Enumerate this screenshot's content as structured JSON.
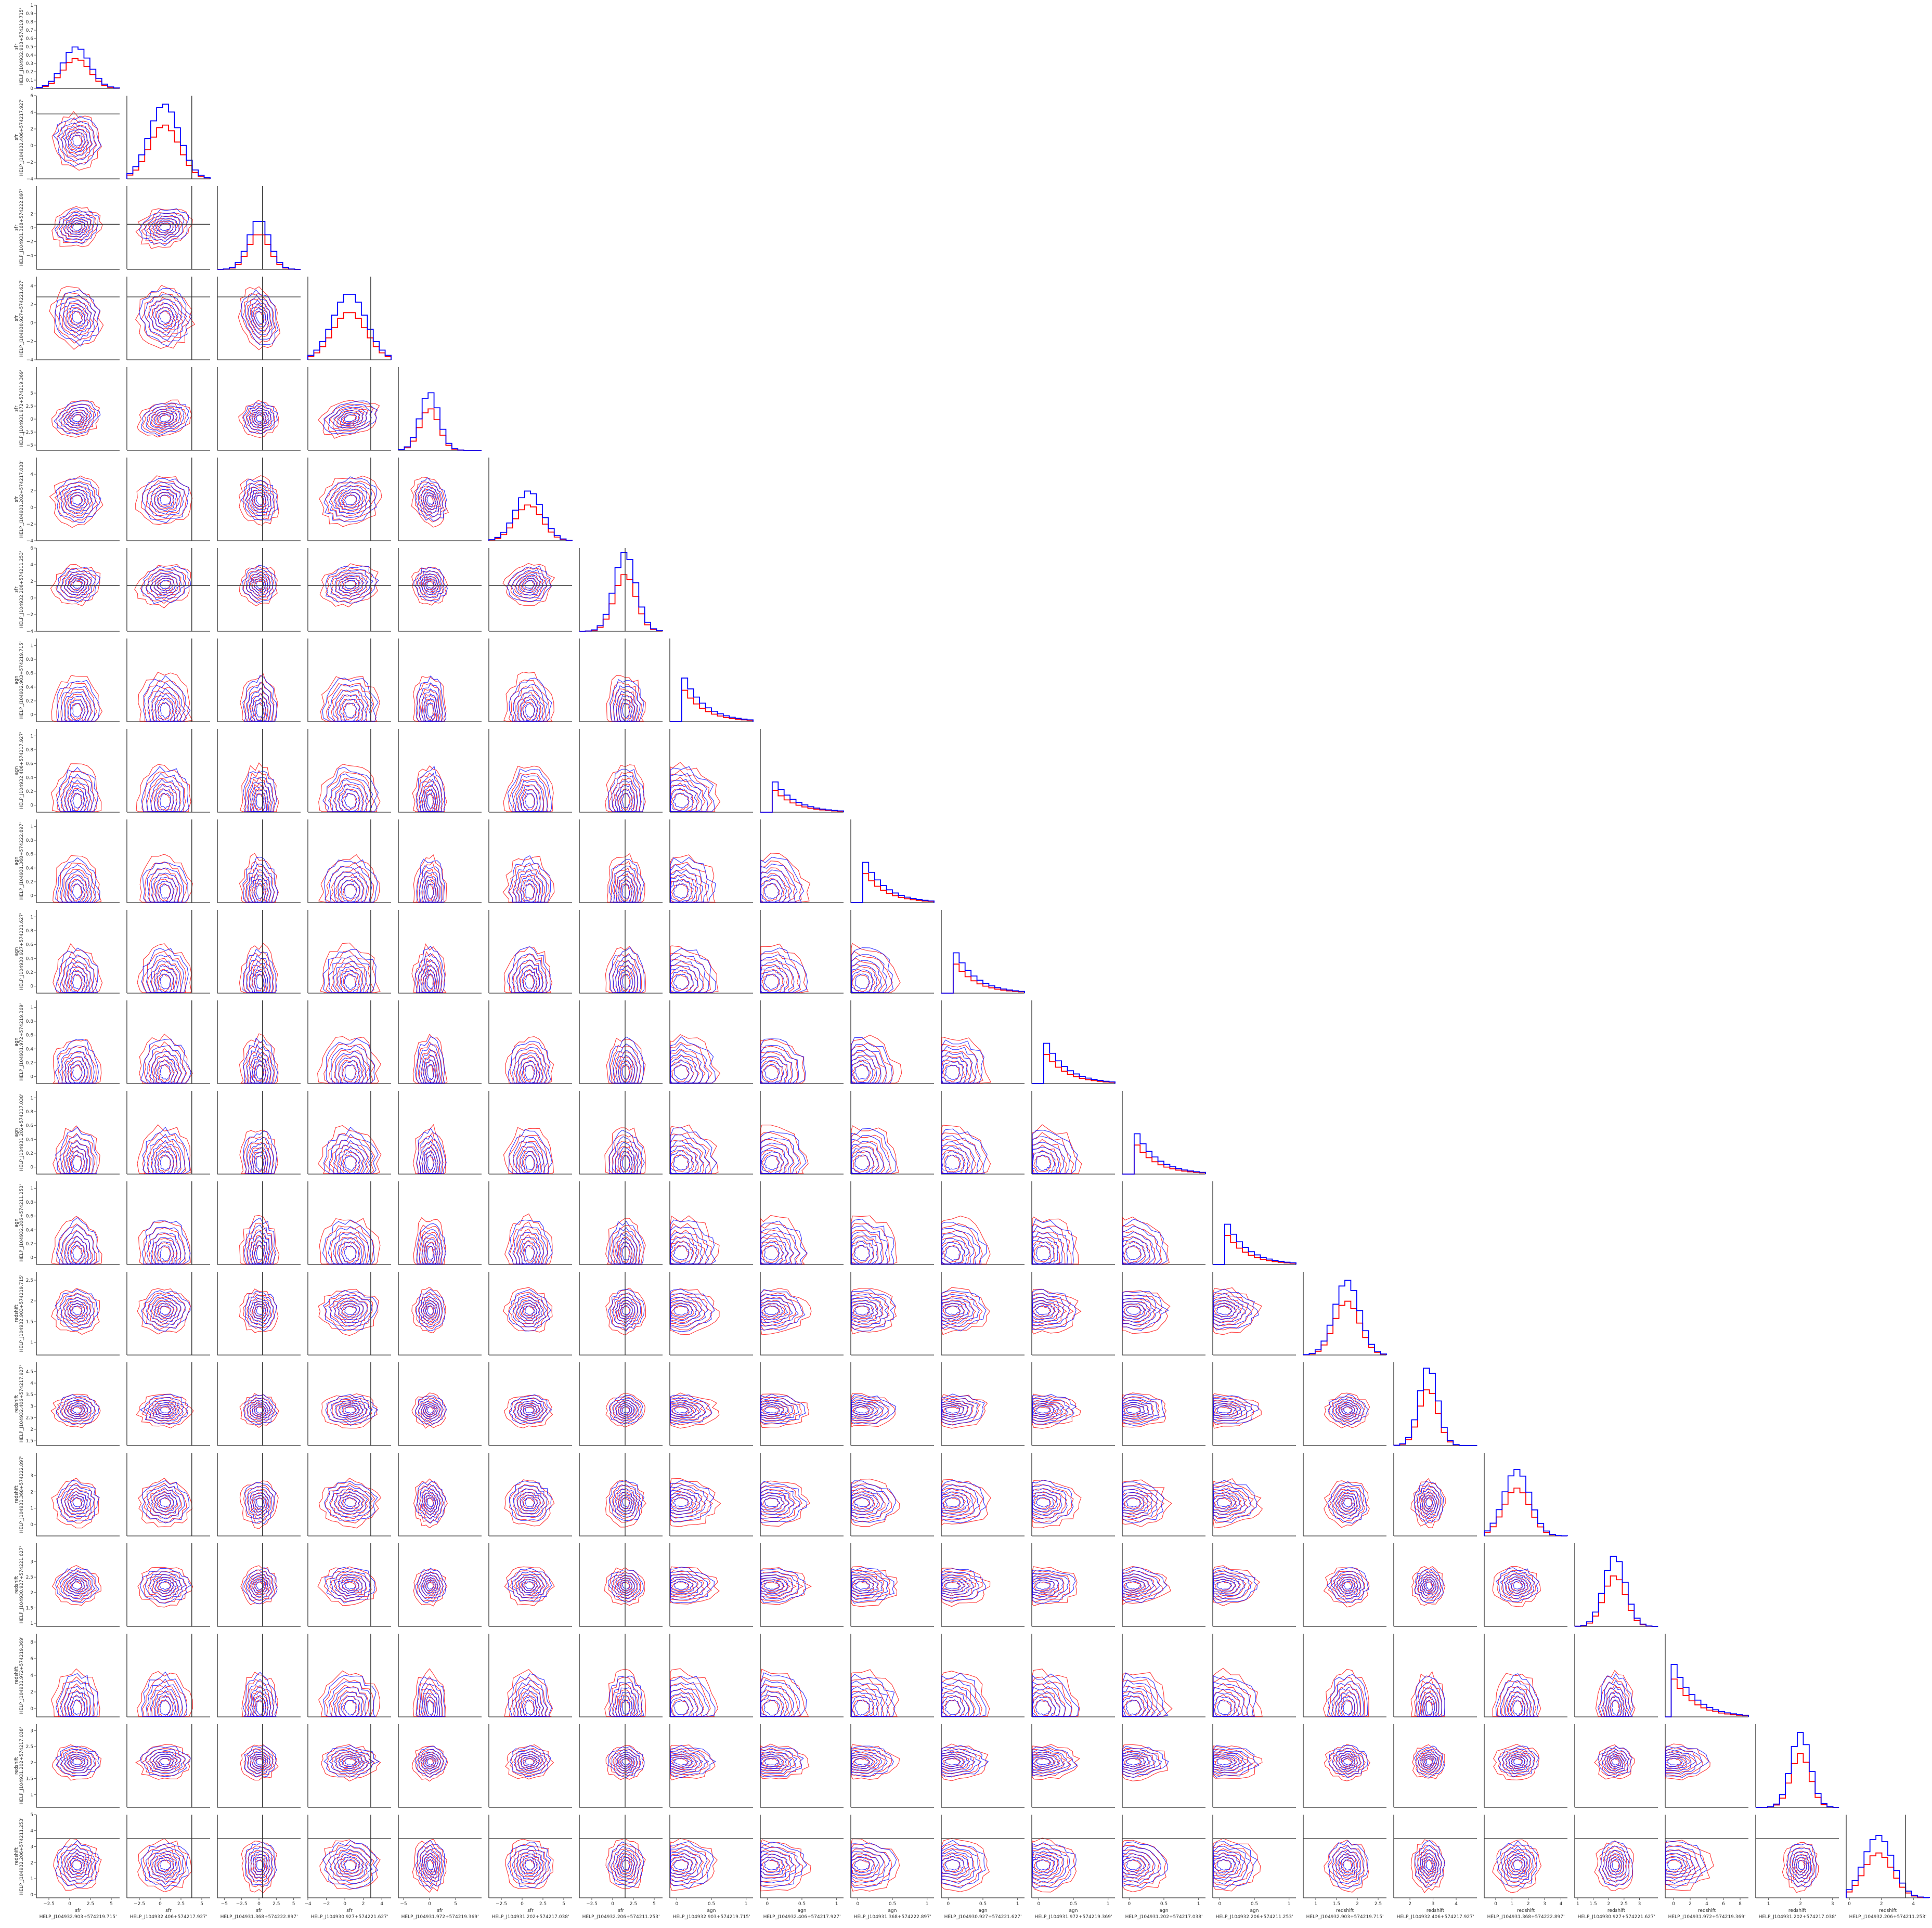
{
  "chart_data": {
    "type": "corner",
    "n_params": 21,
    "series": [
      {
        "name": "",
        "color": "#ff0000"
      },
      {
        "name": "",
        "color": "#0000ff"
      }
    ],
    "params": [
      {
        "quantity": "sfr",
        "source": "HELP_J104932.903+574219.715'",
        "range": [
          -4,
          6
        ],
        "ticks": [
          -2.5,
          0.0,
          2.5,
          5.0
        ],
        "yticks": [
          0.0,
          0.1,
          0.2,
          0.3,
          0.4,
          0.5,
          0.6,
          0.7,
          0.8,
          0.9,
          1.0
        ],
        "peak": 0.5,
        "center": 0.8,
        "width": 1.6,
        "hist": "gauss",
        "fit": 0
      },
      {
        "quantity": "sfr",
        "source": "HELP_J104932.406+574217.927'",
        "range": [
          -4,
          6
        ],
        "ticks": [
          -2.5,
          0.0,
          2.5,
          5.0
        ],
        "yticks": [
          -4,
          -2,
          0,
          2,
          4,
          6
        ],
        "peak": 0.9,
        "center": 0.5,
        "width": 1.8,
        "hist": "gauss",
        "fit": 3.8
      },
      {
        "quantity": "sfr",
        "source": "HELP_J104931.368+574222.897'",
        "range": [
          -6,
          6
        ],
        "ticks": [
          -5.0,
          -2.5,
          0.0,
          2.5,
          5.0
        ],
        "yticks": [
          -4,
          -2,
          0,
          2
        ],
        "peak": 0.6,
        "center": 0.0,
        "width": 1.5,
        "hist": "gauss",
        "fit": 0.5
      },
      {
        "quantity": "sfr",
        "source": "HELP_J104930.927+574221.627'",
        "range": [
          -4,
          5
        ],
        "ticks": [
          -4,
          -2,
          0,
          2,
          4
        ],
        "yticks": [
          -4,
          -2,
          0,
          2,
          4
        ],
        "peak": 0.8,
        "center": 0.5,
        "width": 1.8,
        "hist": "gauss",
        "fit": 2.8
      },
      {
        "quantity": "sfr",
        "source": "HELP_J104931.972+574219.369'",
        "range": [
          -6,
          10
        ],
        "ticks": [
          -5,
          0,
          5
        ],
        "yticks": [
          -5.0,
          -2.5,
          0.0,
          2.5,
          5.0
        ],
        "peak": 0.7,
        "center": 0.0,
        "width": 1.8,
        "hist": "gauss",
        "fit": 0
      },
      {
        "quantity": "sfr",
        "source": "HELP_J104931.202+574217.038'",
        "range": [
          -4,
          6
        ],
        "ticks": [
          -2.5,
          0.0,
          2.5,
          5.0
        ],
        "yticks": [
          -4,
          -2,
          0,
          2,
          4
        ],
        "peak": 0.6,
        "center": 0.8,
        "width": 1.6,
        "hist": "gauss",
        "fit": 0
      },
      {
        "quantity": "sfr",
        "source": "HELP_J104932.206+574211.253'",
        "range": [
          -4,
          6
        ],
        "ticks": [
          -2.5,
          0.0,
          2.5,
          5.0
        ],
        "yticks": [
          -4,
          -2,
          0,
          2,
          4,
          6
        ],
        "peak": 0.95,
        "center": 1.5,
        "width": 1.3,
        "hist": "gauss",
        "fit": 1.5
      },
      {
        "quantity": "agn",
        "source": "HELP_J104932.903+574219.715'",
        "range": [
          -0.1,
          1.1
        ],
        "ticks": [
          0.0,
          0.5,
          1.0
        ],
        "yticks": [
          0.0,
          0.2,
          0.4,
          0.6,
          0.8,
          1.0
        ],
        "peak": 0.65,
        "center": 0.05,
        "width": 0.3,
        "hist": "decay",
        "fit": 0
      },
      {
        "quantity": "agn",
        "source": "HELP_J104932.406+574217.927'",
        "range": [
          -0.1,
          1.1
        ],
        "ticks": [
          0.0,
          0.5,
          1.0
        ],
        "yticks": [
          0.0,
          0.2,
          0.4,
          0.6,
          0.8,
          1.0
        ],
        "peak": 0.45,
        "center": 0.05,
        "width": 0.3,
        "hist": "decay",
        "fit": 0
      },
      {
        "quantity": "agn",
        "source": "HELP_J104931.368+574222.897'",
        "range": [
          -0.1,
          1.1
        ],
        "ticks": [
          0.0,
          0.5,
          1.0
        ],
        "yticks": [
          0.0,
          0.2,
          0.4,
          0.6,
          0.8,
          1.0
        ],
        "peak": 0.6,
        "center": 0.05,
        "width": 0.3,
        "hist": "decay",
        "fit": 0
      },
      {
        "quantity": "agn",
        "source": "HELP_J104930.927+574221.627'",
        "range": [
          -0.1,
          1.1
        ],
        "ticks": [
          0.0,
          0.5,
          1.0
        ],
        "yticks": [
          0.0,
          0.2,
          0.4,
          0.6,
          0.8,
          1.0
        ],
        "peak": 0.6,
        "center": 0.05,
        "width": 0.3,
        "hist": "decay",
        "fit": 0
      },
      {
        "quantity": "agn",
        "source": "HELP_J104931.972+574219.369'",
        "range": [
          -0.1,
          1.1
        ],
        "ticks": [
          0.0,
          0.5,
          1.0
        ],
        "yticks": [
          0.0,
          0.2,
          0.4,
          0.6,
          0.8,
          1.0
        ],
        "peak": 0.6,
        "center": 0.05,
        "width": 0.3,
        "hist": "decay",
        "fit": 0
      },
      {
        "quantity": "agn",
        "source": "HELP_J104931.202+574217.038'",
        "range": [
          -0.1,
          1.1
        ],
        "ticks": [
          0.0,
          0.5,
          1.0
        ],
        "yticks": [
          0.0,
          0.2,
          0.4,
          0.6,
          0.8,
          1.0
        ],
        "peak": 0.6,
        "center": 0.05,
        "width": 0.3,
        "hist": "decay",
        "fit": 0
      },
      {
        "quantity": "agn",
        "source": "HELP_J104932.206+574211.253'",
        "range": [
          -0.1,
          1.1
        ],
        "ticks": [
          0.0,
          0.5,
          1.0
        ],
        "yticks": [
          0.0,
          0.2,
          0.4,
          0.6,
          0.8,
          1.0
        ],
        "peak": 0.6,
        "center": 0.05,
        "width": 0.3,
        "hist": "decay",
        "fit": 0
      },
      {
        "quantity": "redshift",
        "source": "HELP_J104932.903+574219.715'",
        "range": [
          0.7,
          2.7
        ],
        "ticks": [
          1.0,
          1.5,
          2.0,
          2.5
        ],
        "yticks": [
          1.0,
          1.5,
          2.0,
          2.5
        ],
        "peak": 0.9,
        "center": 1.75,
        "width": 0.3,
        "hist": "gauss",
        "fit": 0
      },
      {
        "quantity": "redshift",
        "source": "HELP_J104932.406+574217.927'",
        "range": [
          1.3,
          4.9
        ],
        "ticks": [
          2,
          3,
          4
        ],
        "yticks": [
          1.5,
          2.0,
          2.5,
          3.0,
          3.5,
          4.0,
          4.5
        ],
        "peak": 0.95,
        "center": 2.8,
        "width": 0.4,
        "hist": "gauss",
        "fit": 0
      },
      {
        "quantity": "redshift",
        "source": "HELP_J104931.368+574222.897'",
        "range": [
          -0.7,
          4.4
        ],
        "ticks": [
          0,
          1,
          2,
          3,
          4
        ],
        "yticks": [
          0,
          1,
          2,
          3
        ],
        "peak": 0.8,
        "center": 1.3,
        "width": 0.8,
        "hist": "gauss",
        "fit": 0
      },
      {
        "quantity": "redshift",
        "source": "HELP_J104930.927+574221.627'",
        "range": [
          0.9,
          3.6
        ],
        "ticks": [
          1.0,
          1.5,
          2.0,
          2.5,
          3.0
        ],
        "yticks": [
          1.0,
          1.5,
          2.0,
          2.5,
          3.0
        ],
        "peak": 0.85,
        "center": 2.2,
        "width": 0.35,
        "hist": "gauss",
        "fit": 0
      },
      {
        "quantity": "redshift",
        "source": "HELP_J104931.972+574219.369'",
        "range": [
          -1,
          9
        ],
        "ticks": [
          0,
          2,
          4,
          6,
          8
        ],
        "yticks": [
          0,
          2,
          4,
          6,
          8
        ],
        "peak": 0.65,
        "center": 0,
        "width": 2.5,
        "hist": "decay",
        "fit": 0
      },
      {
        "quantity": "redshift",
        "source": "HELP_J104931.202+574217.038'",
        "range": [
          0.6,
          3.2
        ],
        "ticks": [
          1,
          2,
          3
        ],
        "yticks": [
          1.0,
          1.5,
          2.0,
          2.5,
          3.0
        ],
        "peak": 0.9,
        "center": 2.0,
        "width": 0.3,
        "hist": "gauss",
        "fit": 0
      },
      {
        "quantity": "redshift",
        "source": "HELP_J104932.206+574211.253'",
        "range": [
          -0.2,
          5.0
        ],
        "ticks": [
          0,
          2,
          4
        ],
        "yticks": [
          0,
          1,
          2,
          3,
          4,
          5
        ],
        "peak": 0.75,
        "center": 1.8,
        "width": 0.9,
        "hist": "gauss",
        "fit": 3.5
      }
    ]
  }
}
